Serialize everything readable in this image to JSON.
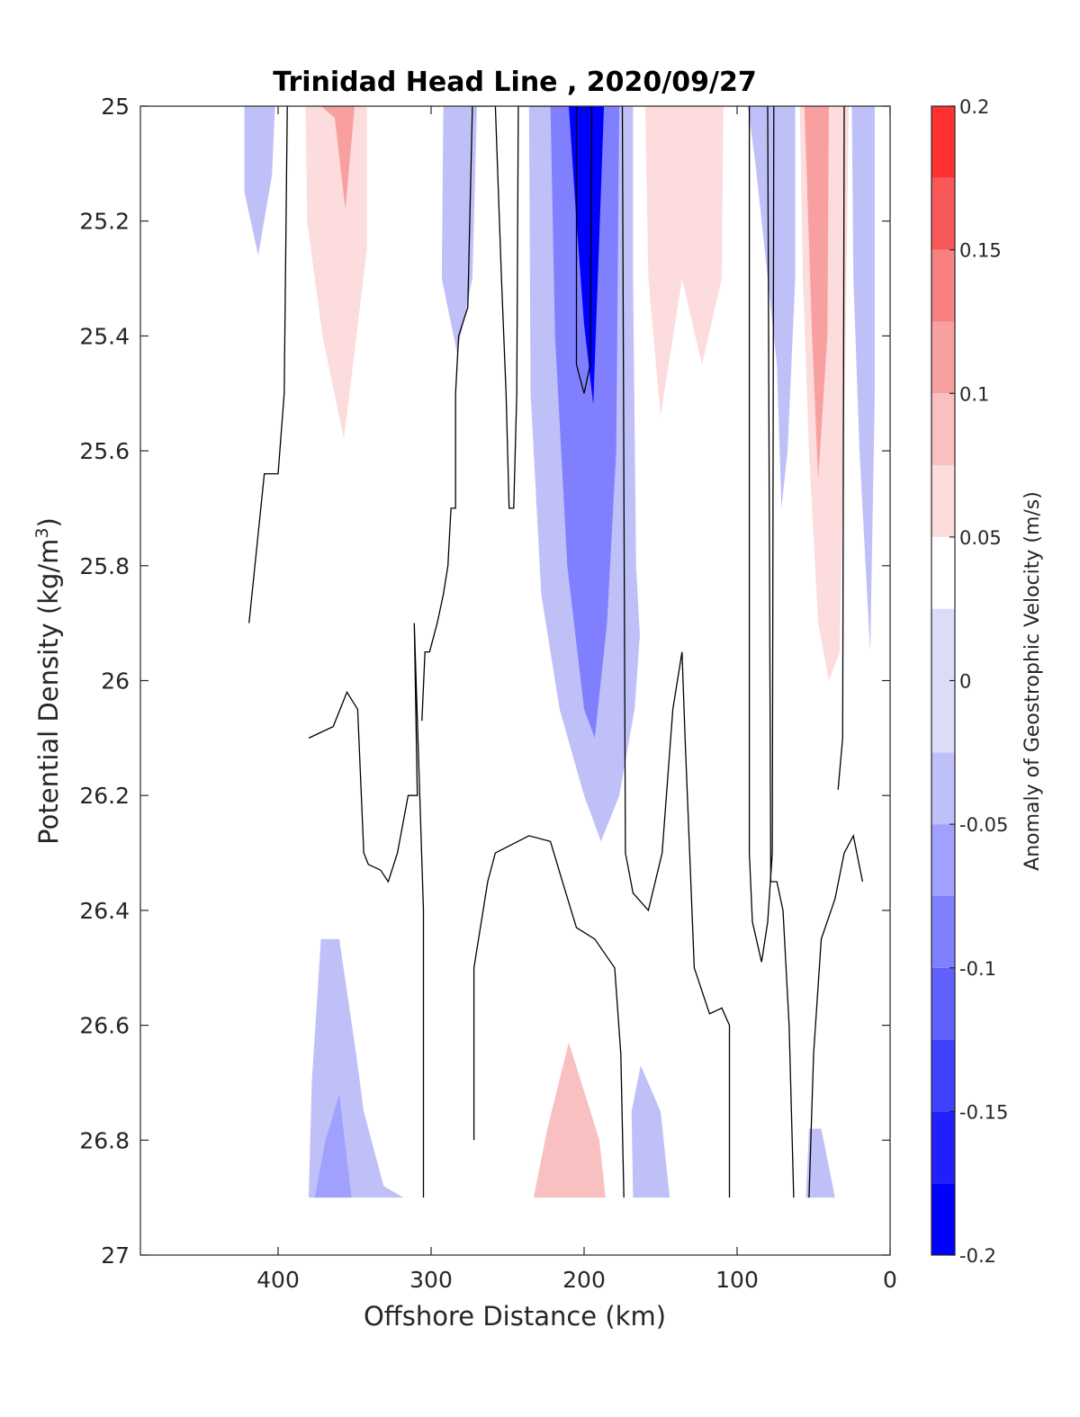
{
  "chart_data": {
    "type": "heatmap",
    "subtype": "filled-contour",
    "title": "Trinidad Head Line , 2020/09/27",
    "xlabel": "Offshore Distance (km)",
    "ylabel": "Potential Density (kg/m",
    "ylabel_sup": "3",
    "ylabel_close": ")",
    "xlim": [
      490,
      0
    ],
    "ylim": [
      25,
      27
    ],
    "x_reversed": true,
    "y_reversed": true,
    "xticks": [
      400,
      300,
      200,
      100,
      0
    ],
    "xtick_labels": [
      "400",
      "300",
      "200",
      "100",
      "0"
    ],
    "yticks": [
      25,
      25.2,
      25.4,
      25.6,
      25.8,
      26,
      26.2,
      26.4,
      26.6,
      26.8,
      27
    ],
    "ytick_labels": [
      "25",
      "25.2",
      "25.4",
      "25.6",
      "25.8",
      "26",
      "26.2",
      "26.4",
      "26.6",
      "26.8",
      "27"
    ],
    "colorbar": {
      "label": "Anomaly of Geostrophic Velocity (m/s)",
      "range": [
        -0.2,
        0.2
      ],
      "ticks": [
        0.2,
        0.15,
        0.1,
        0.05,
        0,
        -0.05,
        -0.1,
        -0.15,
        -0.2
      ],
      "tick_labels": [
        "0.2",
        "0.15",
        "0.1",
        "0.05",
        "0",
        "-0.05",
        "-0.1",
        "-0.15",
        "-0.2"
      ],
      "levels": [
        -0.2,
        -0.175,
        -0.15,
        -0.125,
        -0.1,
        -0.075,
        -0.05,
        -0.025,
        0.025,
        0.05,
        0.075,
        0.1,
        0.125,
        0.15,
        0.175,
        0.2
      ],
      "colors": [
        "#0000ff",
        "#2020ff",
        "#4040ff",
        "#6060ff",
        "#8080ff",
        "#a0a0ff",
        "#c0c0f8",
        "#dcdcf8",
        "#ffffff",
        "#fcdcdc",
        "#f8c0c0",
        "#f8a0a0",
        "#f88080",
        "#f85858",
        "#ff3030",
        "#ff0000"
      ]
    },
    "regions": [
      {
        "name": "neg-400km",
        "value": -0.04,
        "points": [
          [
            422,
            25
          ],
          [
            402,
            25
          ],
          [
            404,
            25.12
          ],
          [
            413,
            25.26
          ],
          [
            422,
            25.15
          ]
        ]
      },
      {
        "name": "pos-360km",
        "value": 0.04,
        "points": [
          [
            384,
            25
          ],
          [
            310,
            25
          ],
          [
            310,
            25.55
          ],
          [
            317,
            25.8
          ],
          [
            321,
            25.93
          ],
          [
            328,
            25.8
          ],
          [
            338,
            25.6
          ],
          [
            342,
            25.6
          ],
          [
            347,
            25.5
          ],
          [
            357,
            25.8
          ],
          [
            369,
            25.55
          ],
          [
            381,
            25.3
          ],
          [
            386,
            25.1
          ]
        ]
      },
      {
        "name": "pos-360km-b",
        "value": 0.06,
        "points": [
          [
            382,
            25
          ],
          [
            342,
            25
          ],
          [
            342,
            25.25
          ],
          [
            357,
            25.58
          ],
          [
            371,
            25.4
          ],
          [
            381,
            25.2
          ]
        ]
      },
      {
        "name": "pos-360km-c",
        "value": 0.1,
        "points": [
          [
            372,
            25
          ],
          [
            350,
            25
          ],
          [
            356,
            25.18
          ],
          [
            363,
            25.02
          ]
        ]
      },
      {
        "name": "neg-290km",
        "value": -0.04,
        "points": [
          [
            292,
            25
          ],
          [
            270,
            25
          ],
          [
            273,
            25.3
          ],
          [
            283,
            25.43
          ],
          [
            293,
            25.3
          ]
        ]
      },
      {
        "name": "pos-250km",
        "value": 0.03,
        "points": [
          [
            258,
            25
          ],
          [
            242,
            25
          ],
          [
            245,
            25.15
          ],
          [
            250,
            25.2
          ],
          [
            255,
            25.08
          ]
        ]
      },
      {
        "name": "neg-200km-outer",
        "value": -0.04,
        "points": [
          [
            236,
            25
          ],
          [
            163,
            25
          ],
          [
            163,
            25.9
          ],
          [
            167,
            26.05
          ],
          [
            177,
            26.2
          ],
          [
            189,
            26.28
          ],
          [
            200,
            26.2
          ],
          [
            216,
            26.05
          ],
          [
            228,
            25.85
          ],
          [
            235,
            25.5
          ]
        ]
      },
      {
        "name": "neg-200km-mid",
        "value": -0.09,
        "points": [
          [
            222,
            25
          ],
          [
            177,
            25
          ],
          [
            179,
            25.6
          ],
          [
            185,
            25.9
          ],
          [
            193,
            26.1
          ],
          [
            200,
            26.05
          ],
          [
            211,
            25.8
          ],
          [
            219,
            25.4
          ]
        ]
      },
      {
        "name": "neg-200km-core",
        "value": -0.18,
        "points": [
          [
            210,
            25
          ],
          [
            187,
            25
          ],
          [
            194,
            25.52
          ],
          [
            200,
            25.38
          ],
          [
            205,
            25.2
          ]
        ]
      },
      {
        "name": "pos-140km",
        "value": 0.04,
        "points": [
          [
            168,
            25
          ],
          [
            104,
            25
          ],
          [
            104,
            25.5
          ],
          [
            107,
            25.9
          ],
          [
            112,
            26.02
          ],
          [
            121,
            25.8
          ],
          [
            135,
            25.6
          ],
          [
            146,
            25.75
          ],
          [
            160,
            26.1
          ],
          [
            166,
            25.8
          ],
          [
            168,
            25.3
          ]
        ]
      },
      {
        "name": "pos-140km-b",
        "value": 0.07,
        "points": [
          [
            160,
            25
          ],
          [
            109,
            25
          ],
          [
            110,
            25.3
          ],
          [
            123,
            25.45
          ],
          [
            136,
            25.3
          ],
          [
            150,
            25.54
          ],
          [
            158,
            25.3
          ]
        ]
      },
      {
        "name": "neg-85km",
        "value": -0.05,
        "points": [
          [
            93,
            25
          ],
          [
            62,
            25
          ],
          [
            62,
            25.3
          ],
          [
            67,
            25.6
          ],
          [
            71,
            25.7
          ],
          [
            74,
            25.45
          ],
          [
            82,
            25.25
          ],
          [
            88,
            25.1
          ]
        ]
      },
      {
        "name": "pos-45km",
        "value": 0.05,
        "points": [
          [
            59,
            25
          ],
          [
            27,
            25
          ],
          [
            29,
            25.4
          ],
          [
            33,
            25.95
          ],
          [
            40,
            26.0
          ],
          [
            47,
            25.9
          ],
          [
            53,
            25.6
          ],
          [
            57,
            25.3
          ]
        ]
      },
      {
        "name": "pos-45km-b",
        "value": 0.12,
        "points": [
          [
            56,
            25
          ],
          [
            40,
            25
          ],
          [
            41,
            25.4
          ],
          [
            47,
            25.65
          ],
          [
            51,
            25.4
          ]
        ]
      },
      {
        "name": "neg-20km",
        "value": -0.03,
        "points": [
          [
            25,
            25
          ],
          [
            10,
            25
          ],
          [
            10,
            25.5
          ],
          [
            13,
            25.95
          ],
          [
            20,
            25.6
          ],
          [
            24,
            25.3
          ]
        ]
      },
      {
        "name": "neg-340km-deep",
        "value": -0.04,
        "points": [
          [
            372,
            26.45
          ],
          [
            360,
            26.45
          ],
          [
            349,
            26.65
          ],
          [
            344,
            26.75
          ],
          [
            331,
            26.88
          ],
          [
            318,
            26.9
          ],
          [
            380,
            26.9
          ],
          [
            378,
            26.7
          ]
        ]
      },
      {
        "name": "neg-360km-deep-b",
        "value": -0.07,
        "points": [
          [
            360,
            26.72
          ],
          [
            352,
            26.9
          ],
          [
            376,
            26.9
          ],
          [
            369,
            26.8
          ]
        ]
      },
      {
        "name": "pos-210km-deep",
        "value": 0.04,
        "points": [
          [
            215,
            26.48
          ],
          [
            196,
            26.55
          ],
          [
            187,
            26.7
          ],
          [
            180,
            26.9
          ],
          [
            240,
            26.9
          ],
          [
            236,
            26.8
          ],
          [
            231,
            26.6
          ]
        ]
      },
      {
        "name": "pos-210km-deep-b",
        "value": 0.08,
        "points": [
          [
            210,
            26.63
          ],
          [
            190,
            26.8
          ],
          [
            186,
            26.9
          ],
          [
            233,
            26.9
          ],
          [
            224,
            26.78
          ]
        ]
      },
      {
        "name": "neg-140km-deep",
        "value": -0.04,
        "points": [
          [
            163,
            26.67
          ],
          [
            150,
            26.75
          ],
          [
            144,
            26.9
          ],
          [
            168,
            26.9
          ],
          [
            169,
            26.75
          ]
        ]
      },
      {
        "name": "neg-40km-deep",
        "value": -0.03,
        "points": [
          [
            53,
            26.78
          ],
          [
            45,
            26.78
          ],
          [
            36,
            26.9
          ],
          [
            55,
            26.9
          ]
        ]
      }
    ],
    "contours": [
      [
        [
          419,
          25.9
        ],
        [
          409,
          25.64
        ],
        [
          400,
          25.64
        ],
        [
          396,
          25.5
        ],
        [
          394,
          25
        ]
      ],
      [
        [
          306,
          26.07
        ],
        [
          304,
          25.95
        ],
        [
          301,
          25.95
        ],
        [
          296,
          25.9
        ],
        [
          292,
          25.85
        ],
        [
          289,
          25.8
        ],
        [
          287,
          25.7
        ],
        [
          284,
          25.7
        ],
        [
          284,
          25.5
        ],
        [
          282,
          25.4
        ],
        [
          276,
          25.35
        ],
        [
          273,
          25
        ],
        [
          258,
          25
        ],
        [
          254,
          25.3
        ],
        [
          251,
          25.5
        ],
        [
          249,
          25.7
        ],
        [
          246,
          25.7
        ],
        [
          244,
          25.5
        ],
        [
          243,
          25
        ],
        [
          205,
          25
        ],
        [
          205,
          25.45
        ],
        [
          200,
          25.5
        ],
        [
          196,
          25.45
        ],
        [
          195,
          25
        ]
      ],
      [
        [
          380,
          26.1
        ],
        [
          364,
          26.08
        ],
        [
          355,
          26.02
        ],
        [
          348,
          26.05
        ],
        [
          344,
          26.3
        ],
        [
          341,
          26.32
        ],
        [
          333,
          26.33
        ],
        [
          328,
          26.35
        ],
        [
          322,
          26.3
        ],
        [
          315,
          26.2
        ],
        [
          309,
          26.2
        ],
        [
          311,
          25.9
        ],
        [
          305,
          26.4
        ],
        [
          305,
          26.9
        ]
      ],
      [
        [
          272,
          26.8
        ],
        [
          272,
          26.5
        ],
        [
          263,
          26.35
        ],
        [
          258,
          26.3
        ],
        [
          236,
          26.27
        ],
        [
          222,
          26.28
        ],
        [
          213,
          26.36
        ],
        [
          205,
          26.43
        ],
        [
          193,
          26.45
        ],
        [
          180,
          26.5
        ],
        [
          176,
          26.65
        ],
        [
          174,
          26.9
        ]
      ],
      [
        [
          175,
          25
        ],
        [
          173,
          26.3
        ],
        [
          168,
          26.37
        ],
        [
          158,
          26.4
        ],
        [
          149,
          26.3
        ],
        [
          142,
          26.05
        ],
        [
          136,
          25.95
        ],
        [
          134,
          26.1
        ],
        [
          131,
          26.3
        ],
        [
          128,
          26.5
        ],
        [
          118,
          26.58
        ],
        [
          110,
          26.57
        ],
        [
          105,
          26.6
        ],
        [
          105,
          26.9
        ]
      ],
      [
        [
          92,
          25
        ],
        [
          92,
          26.3
        ],
        [
          90,
          26.42
        ],
        [
          84,
          26.49
        ],
        [
          80,
          26.42
        ],
        [
          77,
          26.3
        ],
        [
          76,
          25
        ]
      ],
      [
        [
          63,
          26.9
        ],
        [
          66,
          26.6
        ],
        [
          70,
          26.4
        ],
        [
          74,
          26.35
        ],
        [
          78,
          26.35
        ],
        [
          80,
          25
        ]
      ],
      [
        [
          30,
          25
        ],
        [
          31,
          26.1
        ],
        [
          34,
          26.19
        ]
      ],
      [
        [
          18,
          26.35
        ],
        [
          24,
          26.27
        ],
        [
          30,
          26.3
        ],
        [
          36,
          26.38
        ],
        [
          45,
          26.45
        ],
        [
          50,
          26.65
        ],
        [
          53,
          26.9
        ]
      ]
    ]
  }
}
